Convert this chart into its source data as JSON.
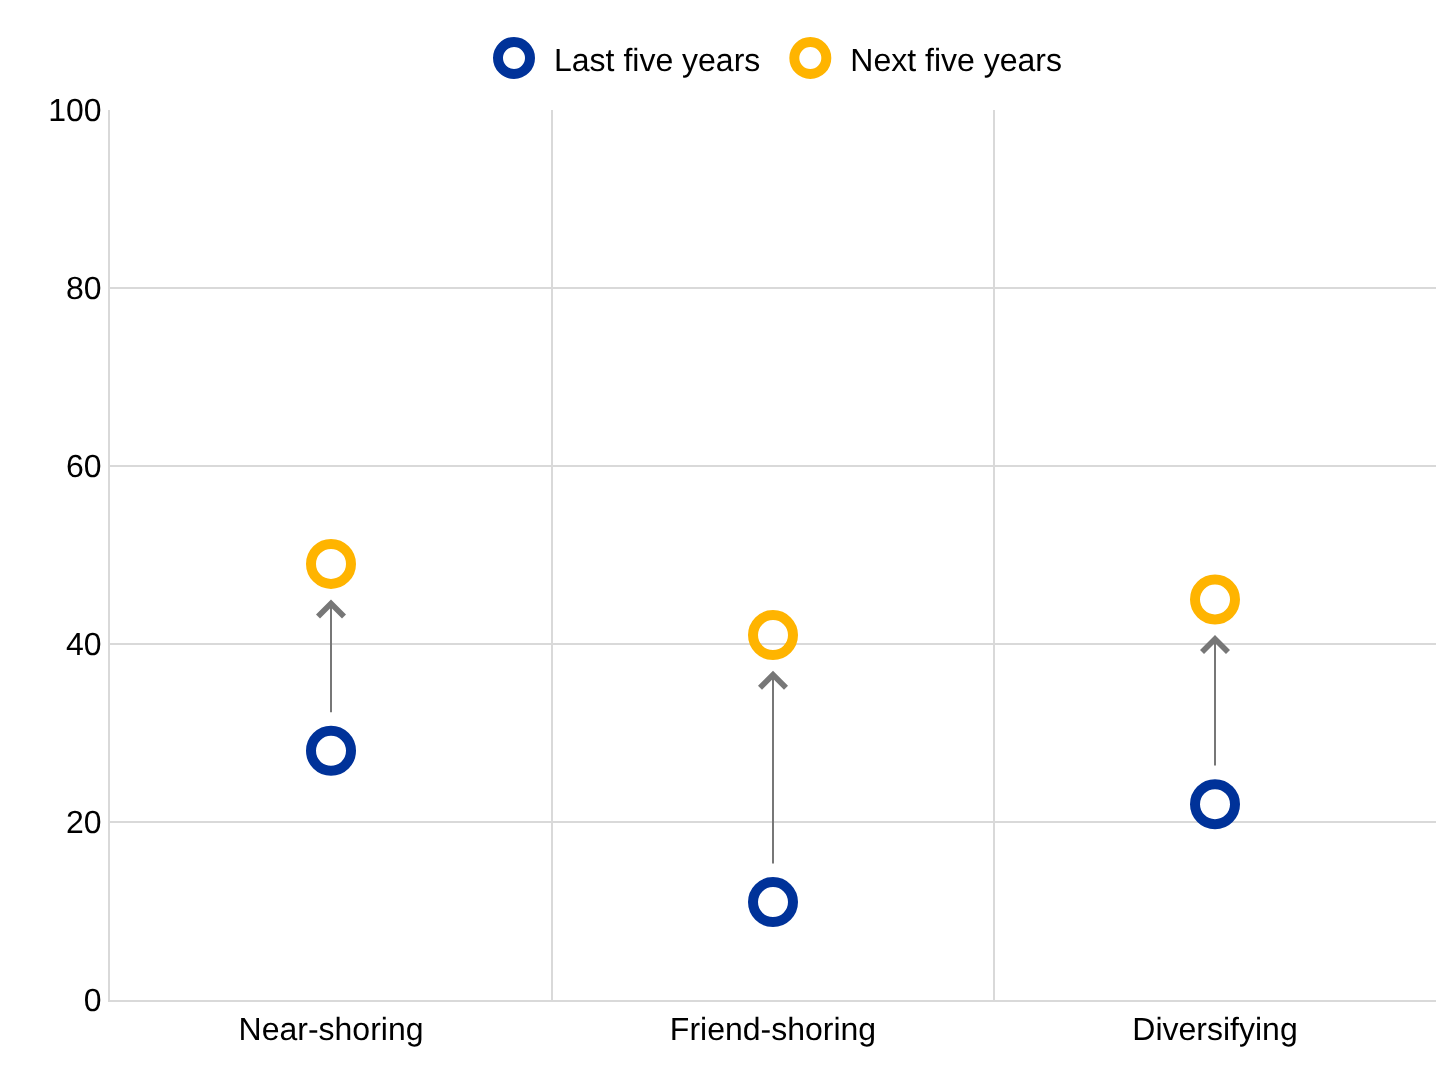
{
  "chart_data": {
    "type": "scatter",
    "categories": [
      "Near-shoring",
      "Friend-shoring",
      "Diversifying"
    ],
    "series": [
      {
        "name": "Last five years",
        "color": "#003299",
        "values": [
          28,
          11,
          22
        ]
      },
      {
        "name": "Next five years",
        "color": "#ffb400",
        "values": [
          49,
          41,
          45
        ]
      }
    ],
    "ylim": [
      0,
      100
    ],
    "yticks": [
      0,
      20,
      40,
      60,
      80,
      100
    ],
    "grid": true,
    "legend": "top",
    "marker": "circle"
  }
}
